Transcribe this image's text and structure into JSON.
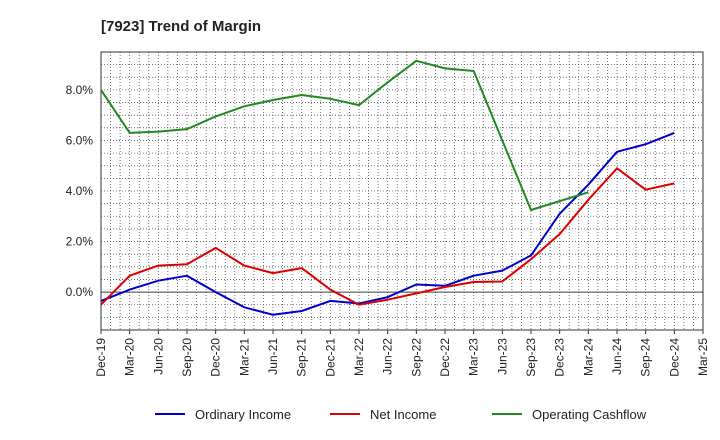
{
  "chart_data": {
    "type": "line",
    "title": "[7923]  Trend of Margin",
    "xlabel": "",
    "ylabel": "",
    "x": [
      "Dec-19",
      "Mar-20",
      "Jun-20",
      "Sep-20",
      "Dec-20",
      "Mar-21",
      "Jun-21",
      "Sep-21",
      "Dec-21",
      "Mar-22",
      "Jun-22",
      "Sep-22",
      "Dec-22",
      "Mar-23",
      "Jun-23",
      "Sep-23",
      "Dec-23",
      "Mar-24",
      "Jun-24",
      "Sep-24",
      "Dec-24",
      "Mar-25"
    ],
    "ylim": [
      -1.5,
      9.5
    ],
    "yticks": [
      0,
      2,
      4,
      6,
      8
    ],
    "ytick_labels": [
      "0.0%",
      "2.0%",
      "4.0%",
      "6.0%",
      "8.0%"
    ],
    "grid": true,
    "legend_position": "bottom",
    "series": [
      {
        "name": "Ordinary Income",
        "color": "#0000cc",
        "values": [
          -0.35,
          0.1,
          0.45,
          0.65,
          0.0,
          -0.6,
          -0.9,
          -0.75,
          -0.35,
          -0.45,
          -0.2,
          0.3,
          0.25,
          0.65,
          0.85,
          1.45,
          3.1,
          4.25,
          5.55,
          5.85,
          6.3,
          null
        ]
      },
      {
        "name": "Net Income",
        "color": "#dd0000",
        "values": [
          -0.5,
          0.65,
          1.05,
          1.1,
          1.75,
          1.05,
          0.75,
          0.95,
          0.1,
          -0.5,
          -0.3,
          -0.05,
          0.2,
          0.4,
          0.42,
          1.3,
          2.3,
          3.65,
          4.9,
          4.05,
          4.3,
          null
        ]
      },
      {
        "name": "Operating Cashflow",
        "color": "#228822",
        "values": [
          8.0,
          6.3,
          6.35,
          6.45,
          6.95,
          7.35,
          7.6,
          7.8,
          7.65,
          7.4,
          8.3,
          9.15,
          8.85,
          8.75,
          6.0,
          3.25,
          3.6,
          3.95,
          null,
          null,
          null,
          null
        ]
      }
    ]
  }
}
